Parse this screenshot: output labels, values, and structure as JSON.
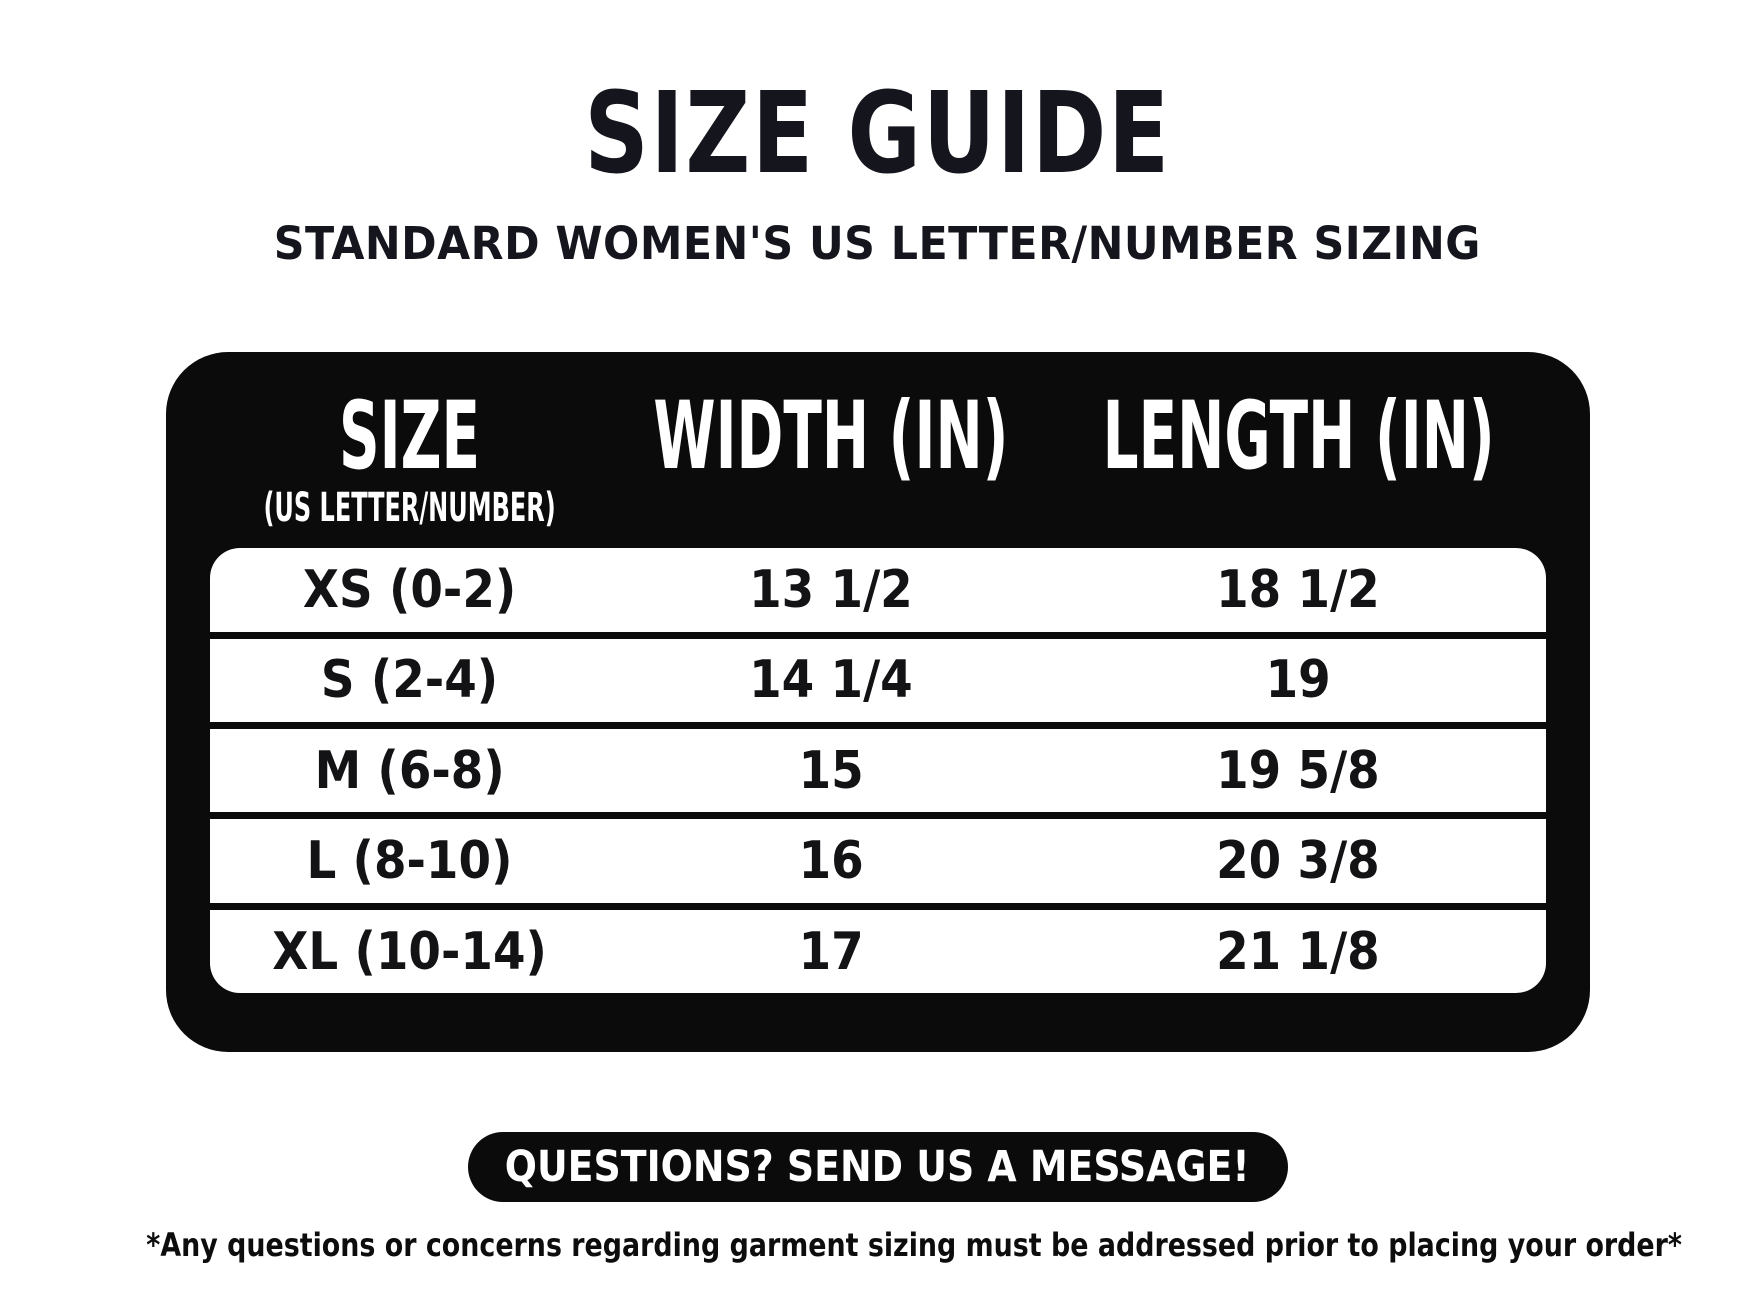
{
  "header": {
    "title": "SIZE GUIDE",
    "subtitle": "STANDARD WOMEN'S US LETTER/NUMBER SIZING"
  },
  "table": {
    "columns": [
      {
        "label": "SIZE",
        "sublabel": "(US LETTER/NUMBER)"
      },
      {
        "label": "WIDTH (IN)",
        "sublabel": ""
      },
      {
        "label": "LENGTH (IN)",
        "sublabel": ""
      }
    ],
    "rows": [
      {
        "size": "XS (0-2)",
        "width_in": "13 1/2",
        "length_in": "18 1/2"
      },
      {
        "size": "S (2-4)",
        "width_in": "14 1/4",
        "length_in": "19"
      },
      {
        "size": "M (6-8)",
        "width_in": "15",
        "length_in": "19 5/8"
      },
      {
        "size": "L (8-10)",
        "width_in": "16",
        "length_in": "20 3/8"
      },
      {
        "size": "XL (10-14)",
        "width_in": "17",
        "length_in": "21 1/8"
      }
    ]
  },
  "cta": {
    "button_label": "QUESTIONS? SEND US A MESSAGE!"
  },
  "footnote": "*Any questions or concerns regarding garment sizing must be addressed prior to placing your order*",
  "colors": {
    "card_black": "#0b0b0b",
    "heading_dark": "#15151d",
    "table_white": "#ffffff"
  }
}
